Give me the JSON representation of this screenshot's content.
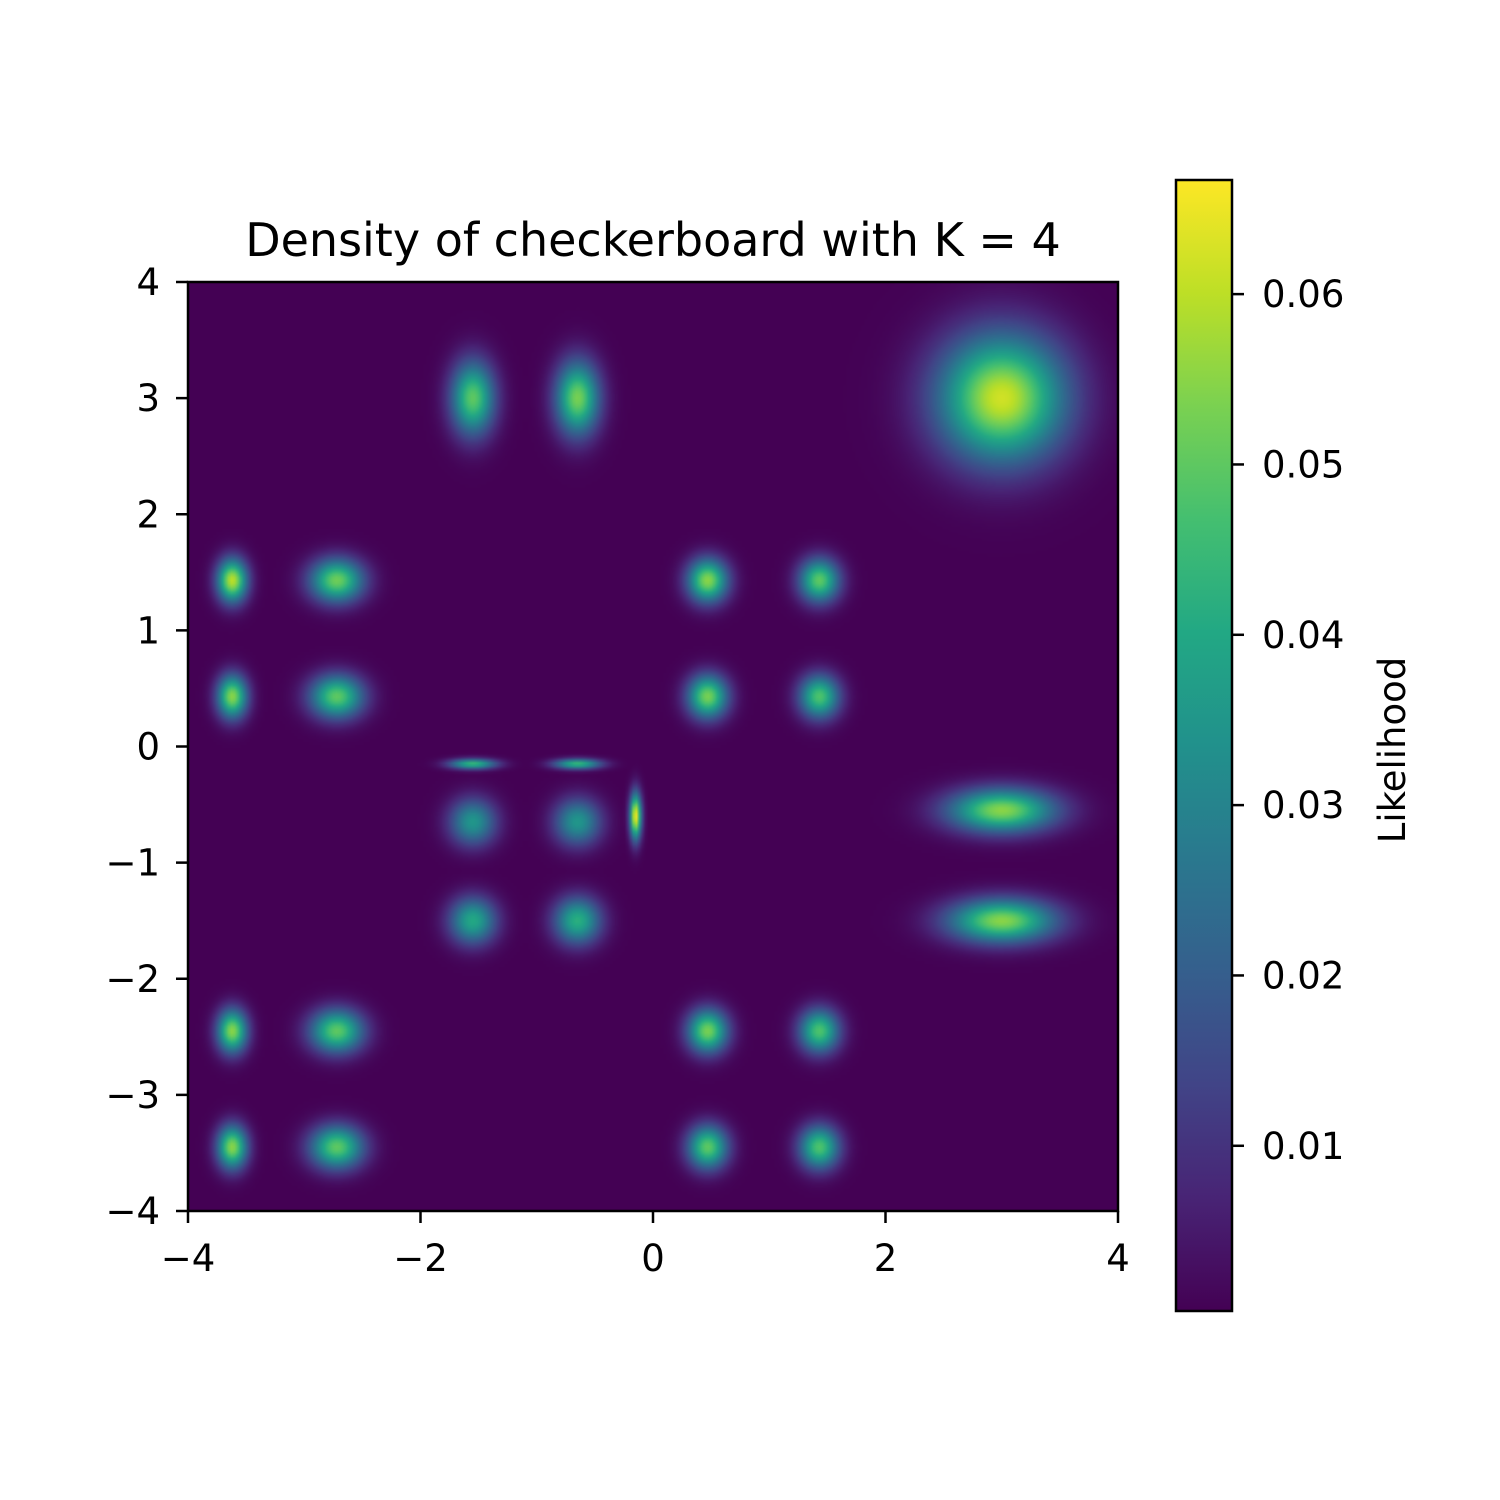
{
  "chart_data": {
    "type": "heatmap",
    "title": "Density of checkerboard with K = 4",
    "xlabel": "",
    "ylabel": "",
    "xlim": [
      -4,
      4
    ],
    "ylim": [
      -4,
      4
    ],
    "x_ticks": [
      -4,
      -2,
      0,
      2,
      4
    ],
    "x_tick_labels": [
      "−4",
      "−2",
      "0",
      "2",
      "4"
    ],
    "y_ticks": [
      -4,
      -3,
      -2,
      -1,
      0,
      1,
      2,
      3,
      4
    ],
    "y_tick_labels": [
      "−4",
      "−3",
      "−2",
      "−1",
      "0",
      "1",
      "2",
      "3",
      "4"
    ],
    "grid": false,
    "colormap": "viridis",
    "colorbar": {
      "label": "Likelihood",
      "min": 0.0003,
      "max": 0.0667,
      "ticks": [
        0.01,
        0.02,
        0.03,
        0.04,
        0.05,
        0.06
      ],
      "tick_labels": [
        "0.01",
        "0.02",
        "0.03",
        "0.04",
        "0.05",
        "0.06"
      ]
    },
    "peaks": [
      {
        "x": -1.55,
        "y": 3.0,
        "value": 0.05
      },
      {
        "x": -0.65,
        "y": 3.0,
        "value": 0.053
      },
      {
        "x": 3.0,
        "y": 3.0,
        "value": 0.062
      },
      {
        "x": -3.62,
        "y": 1.43,
        "value": 0.06
      },
      {
        "x": -2.72,
        "y": 1.43,
        "value": 0.052
      },
      {
        "x": -3.62,
        "y": 0.43,
        "value": 0.055
      },
      {
        "x": -2.72,
        "y": 0.43,
        "value": 0.05
      },
      {
        "x": 0.47,
        "y": 1.43,
        "value": 0.055
      },
      {
        "x": 1.43,
        "y": 1.43,
        "value": 0.05
      },
      {
        "x": 0.47,
        "y": 0.43,
        "value": 0.053
      },
      {
        "x": 1.43,
        "y": 0.43,
        "value": 0.048
      },
      {
        "x": -1.55,
        "y": -0.65,
        "value": 0.035
      },
      {
        "x": -0.65,
        "y": -0.65,
        "value": 0.035
      },
      {
        "x": -1.55,
        "y": -1.5,
        "value": 0.04
      },
      {
        "x": -0.65,
        "y": -1.5,
        "value": 0.042
      },
      {
        "x": -0.15,
        "y": -0.6,
        "value": 0.066
      },
      {
        "x": -1.55,
        "y": -0.15,
        "value": 0.045
      },
      {
        "x": -0.65,
        "y": -0.15,
        "value": 0.045
      },
      {
        "x": 3.0,
        "y": -0.55,
        "value": 0.055
      },
      {
        "x": 3.0,
        "y": -1.5,
        "value": 0.055
      },
      {
        "x": -3.62,
        "y": -2.45,
        "value": 0.055
      },
      {
        "x": -2.72,
        "y": -2.45,
        "value": 0.05
      },
      {
        "x": -3.62,
        "y": -3.45,
        "value": 0.055
      },
      {
        "x": -2.72,
        "y": -3.45,
        "value": 0.05
      },
      {
        "x": 0.47,
        "y": -2.45,
        "value": 0.053
      },
      {
        "x": 1.43,
        "y": -2.45,
        "value": 0.048
      },
      {
        "x": 0.47,
        "y": -3.45,
        "value": 0.05
      },
      {
        "x": 1.43,
        "y": -3.45,
        "value": 0.048
      }
    ]
  }
}
